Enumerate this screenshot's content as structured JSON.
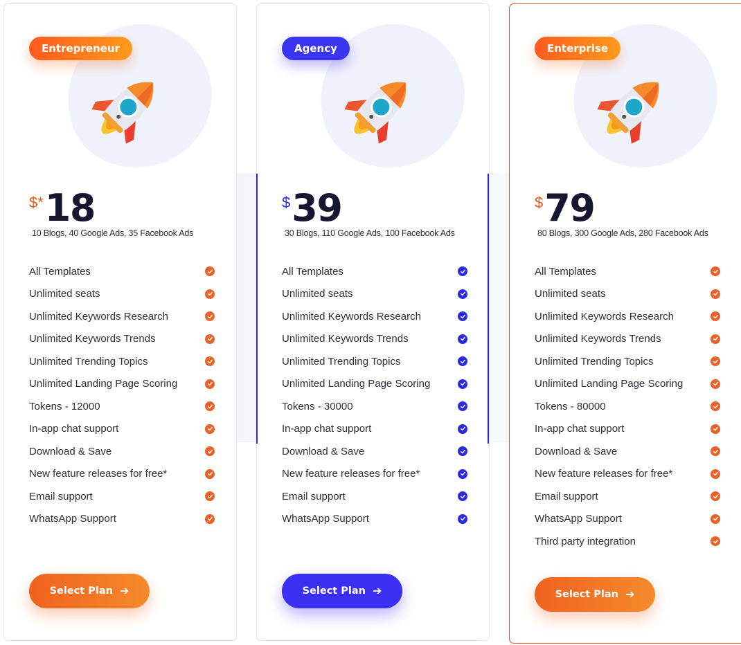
{
  "plans": [
    {
      "badge": "Entrepreneur",
      "currency": "$*",
      "price": "18",
      "summary": "10 Blogs, 40 Google Ads, 35 Facebook Ads",
      "features": [
        "All Templates",
        "Unlimited seats",
        "Unlimited Keywords Research",
        "Unlimited Keywords Trends",
        "Unlimited Trending Topics",
        "Unlimited Landing Page Scoring",
        "Tokens - 12000",
        "In-app chat support",
        "Download & Save",
        "New feature releases for free*",
        "Email support",
        "WhatsApp Support"
      ],
      "button": "Select Plan",
      "accent": "#e8622a"
    },
    {
      "badge": "Agency",
      "currency": "$",
      "price": "39",
      "summary": "30 Blogs, 110 Google Ads, 100 Facebook Ads",
      "features": [
        "All Templates",
        "Unlimited seats",
        "Unlimited Keywords Research",
        "Unlimited Keywords Trends",
        "Unlimited Trending Topics",
        "Unlimited Landing Page Scoring",
        "Tokens - 30000",
        "In-app chat support",
        "Download & Save",
        "New feature releases for free*",
        "Email support",
        "WhatsApp Support"
      ],
      "button": "Select Plan",
      "accent": "#2a2be0"
    },
    {
      "badge": "Enterprise",
      "currency": "$",
      "price": "79",
      "summary": "80 Blogs, 300 Google Ads, 280 Facebook Ads",
      "features": [
        "All Templates",
        "Unlimited seats",
        "Unlimited Keywords Research",
        "Unlimited Keywords Trends",
        "Unlimited Trending Topics",
        "Unlimited Landing Page Scoring",
        "Tokens - 80000",
        "In-app chat support",
        "Download & Save",
        "New feature releases for free*",
        "Email support",
        "WhatsApp Support",
        "Third party integration"
      ],
      "button": "Select Plan",
      "accent": "#e8622a"
    }
  ],
  "icons": {
    "plan_illustration": "rocket-icon",
    "feature_check": "check-circle-icon",
    "button_arrow": "arrow-right-icon"
  }
}
